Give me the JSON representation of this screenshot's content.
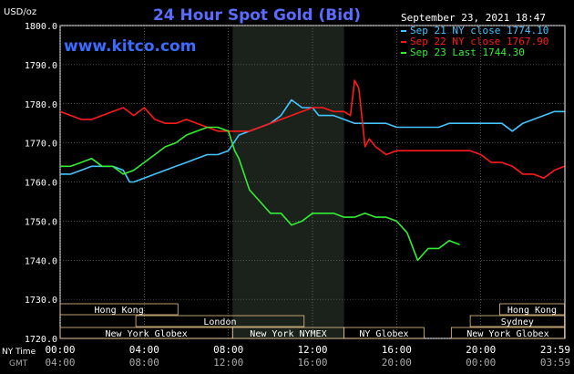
{
  "chart_data": {
    "type": "line",
    "title": "24 Hour Spot Gold (Bid)",
    "watermark": "www.kitco.com",
    "timestamp": "September 23, 2021 18:47",
    "unit_label": "USD/oz",
    "ylim": [
      1720,
      1800
    ],
    "y_ticks": [
      {
        "v": 1800,
        "label": "1800.0"
      },
      {
        "v": 1790,
        "label": "1790.0"
      },
      {
        "v": 1780,
        "label": "1780.0"
      },
      {
        "v": 1770,
        "label": "1770.0"
      },
      {
        "v": 1760,
        "label": "1760.0"
      },
      {
        "v": 1750,
        "label": "1750.0"
      },
      {
        "v": 1740,
        "label": "1740.0"
      },
      {
        "v": 1730,
        "label": "1730.0"
      },
      {
        "v": 1720,
        "label": "1720.0"
      }
    ],
    "x_hours": [
      0,
      24
    ],
    "ny_axis_title": "NY Time",
    "gmt_axis_title": "GMT",
    "x_ticks_ny": [
      {
        "h": 0,
        "label": "00:00"
      },
      {
        "h": 4,
        "label": "04:00"
      },
      {
        "h": 8,
        "label": "08:00"
      },
      {
        "h": 12,
        "label": "12:00"
      },
      {
        "h": 16,
        "label": "16:00"
      },
      {
        "h": 20,
        "label": "20:00"
      },
      {
        "h": 23.98,
        "label": "23:59"
      }
    ],
    "x_ticks_gmt": [
      {
        "h": 0,
        "label": "04:00"
      },
      {
        "h": 4,
        "label": "08:00"
      },
      {
        "h": 8,
        "label": "12:00"
      },
      {
        "h": 12,
        "label": "16:00"
      },
      {
        "h": 16,
        "label": "20:00"
      },
      {
        "h": 20,
        "label": "00:00"
      },
      {
        "h": 23.98,
        "label": "03:59"
      }
    ],
    "shaded_session": {
      "start_h": 8.2,
      "end_h": 13.5
    },
    "legend": [
      {
        "text": "Sep 21 NY close 1774.10",
        "color": "#45c3ff"
      },
      {
        "text": "Sep 22 NY close 1767.90",
        "color": "#ff1a1a"
      },
      {
        "text": "Sep 23 Last 1744.30",
        "color": "#33ee33"
      }
    ],
    "sessions": [
      {
        "name": "Hong Kong",
        "row": 0,
        "start_h": 0,
        "end_h": 5.6
      },
      {
        "name": "London",
        "row": 1,
        "start_h": 3.6,
        "end_h": 11.6
      },
      {
        "name": "New York Globex",
        "row": 2,
        "start_h": 0,
        "end_h": 8.2
      },
      {
        "name": "New York NYMEX",
        "row": 2,
        "start_h": 8.2,
        "end_h": 13.5
      },
      {
        "name": "NY Globex",
        "row": 2,
        "start_h": 13.5,
        "end_h": 17.3
      },
      {
        "name": "Hong Kong",
        "row": 0,
        "start_h": 20.9,
        "end_h": 23.98
      },
      {
        "name": "Sydney",
        "row": 1,
        "start_h": 19.5,
        "end_h": 23.98
      },
      {
        "name": "New York Globex",
        "row": 2,
        "start_h": 18.6,
        "end_h": 23.98
      }
    ],
    "series": [
      {
        "name": "Sep 21 NY close 1774.10",
        "color": "#45c3ff",
        "x": [
          0,
          0.5,
          1,
          1.5,
          2,
          2.5,
          3,
          3.3,
          3.5,
          4,
          4.5,
          5,
          5.5,
          6,
          6.5,
          7,
          7.5,
          8,
          8.5,
          9,
          9.5,
          10,
          10.5,
          11,
          11.5,
          12,
          12.3,
          12.5,
          13,
          13.5,
          14,
          14.5,
          15,
          15.5,
          16,
          16.5,
          17,
          17.5,
          18,
          18.5,
          19,
          19.5,
          20,
          20.5,
          21,
          21.5,
          22,
          22.5,
          23,
          23.5,
          23.98
        ],
        "values": [
          1762,
          1762,
          1763,
          1764,
          1764,
          1764,
          1763,
          1760,
          1760,
          1761,
          1762,
          1763,
          1764,
          1765,
          1766,
          1767,
          1767,
          1768,
          1772,
          1773,
          1774,
          1775,
          1777,
          1781,
          1779,
          1779,
          1777,
          1777,
          1777,
          1776,
          1775,
          1775,
          1775,
          1775,
          1774,
          1774,
          1774,
          1774,
          1774,
          1775,
          1775,
          1775,
          1775,
          1775,
          1775,
          1773,
          1775,
          1776,
          1777,
          1778,
          1778
        ]
      },
      {
        "name": "Sep 22 NY close 1767.90",
        "color": "#ff1a1a",
        "x": [
          0,
          0.5,
          1,
          1.5,
          2,
          2.5,
          3,
          3.5,
          4,
          4.5,
          5,
          5.5,
          6,
          6.5,
          7,
          7.5,
          8,
          8.5,
          9,
          9.5,
          10,
          10.5,
          11,
          11.5,
          12,
          12.5,
          13,
          13.5,
          13.8,
          14,
          14.2,
          14.5,
          14.7,
          15,
          15.5,
          16,
          16.5,
          17,
          17.5,
          18,
          18.5,
          19,
          19.5,
          20,
          20.5,
          21,
          21.5,
          22,
          22.5,
          23,
          23.5,
          23.98
        ],
        "values": [
          1778,
          1777,
          1776,
          1776,
          1777,
          1778,
          1779,
          1777,
          1779,
          1776,
          1775,
          1775,
          1776,
          1775,
          1774,
          1773,
          1773,
          1773,
          1773,
          1774,
          1775,
          1776,
          1777,
          1778,
          1779,
          1779,
          1778,
          1778,
          1777,
          1786,
          1784,
          1769,
          1771,
          1769,
          1767,
          1768,
          1768,
          1768,
          1768,
          1768,
          1768,
          1768,
          1768,
          1767,
          1765,
          1765,
          1764,
          1762,
          1762,
          1761,
          1763,
          1764
        ]
      },
      {
        "name": "Sep 23 Last 1744.30",
        "color": "#33ee33",
        "x": [
          0,
          0.5,
          1,
          1.5,
          2,
          2.5,
          3,
          3.5,
          4,
          4.5,
          5,
          5.5,
          6,
          6.5,
          7,
          7.5,
          8,
          8.3,
          8.5,
          9,
          9.5,
          10,
          10.5,
          11,
          11.5,
          12,
          12.5,
          13,
          13.5,
          14,
          14.5,
          15,
          15.5,
          16,
          16.5,
          17,
          17.5,
          18,
          18.5,
          19
        ],
        "values": [
          1764,
          1764,
          1765,
          1766,
          1764,
          1764,
          1762,
          1763,
          1765,
          1767,
          1769,
          1770,
          1772,
          1773,
          1774,
          1774,
          1773,
          1768,
          1766,
          1758,
          1755,
          1752,
          1752,
          1749,
          1750,
          1752,
          1752,
          1752,
          1751,
          1751,
          1752,
          1751,
          1751,
          1750,
          1747,
          1740,
          1743,
          1743,
          1745,
          1744
        ]
      }
    ]
  }
}
